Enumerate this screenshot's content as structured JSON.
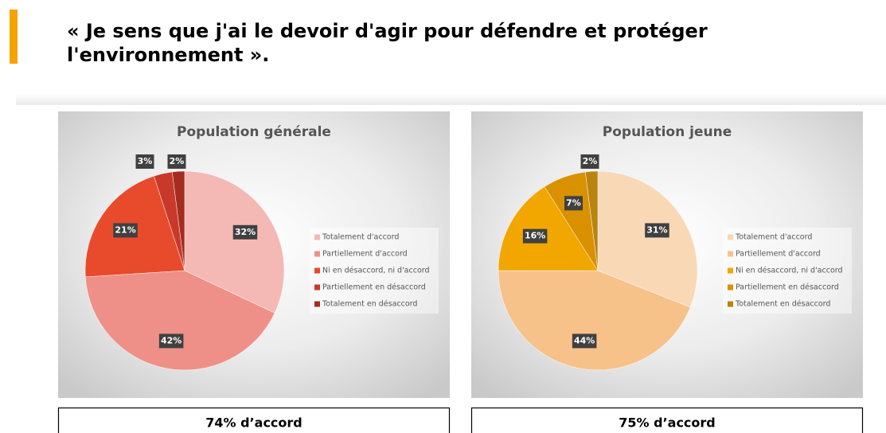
{
  "header": {
    "title_lines": [
      "« Je sens que j'ai le devoir d'agir pour défendre et protéger",
      "l'environnement »."
    ]
  },
  "chart_data": [
    {
      "type": "pie",
      "title": "Population générale",
      "categories": [
        "Totalement d'accord",
        "Partiellement d'accord",
        "Ni en désaccord, ni d'accord",
        "Partiellement en désaccord",
        "Totalement en désaccord"
      ],
      "values": [
        32,
        42,
        21,
        3,
        2
      ],
      "value_labels": [
        "32%",
        "42%",
        "21%",
        "3%",
        "2%"
      ],
      "colors": [
        "#f4b9b5",
        "#ee9088",
        "#e84b2b",
        "#c8392a",
        "#a52c21"
      ],
      "legend": "right",
      "caption": "74% d’accord"
    },
    {
      "type": "pie",
      "title": "Population jeune",
      "categories": [
        "Totalement d'accord",
        "Partiellement d'accord",
        "Ni en désaccord, ni d'accord",
        "Partiellement en désaccord",
        "Totalement en désaccord"
      ],
      "values": [
        31,
        44,
        16,
        7,
        2
      ],
      "value_labels": [
        "31%",
        "44%",
        "16%",
        "7%",
        "2%"
      ],
      "colors": [
        "#f9d8b5",
        "#f7c18a",
        "#f2a600",
        "#d99100",
        "#b9840e"
      ],
      "legend": "right",
      "caption": "75% d’accord"
    }
  ]
}
